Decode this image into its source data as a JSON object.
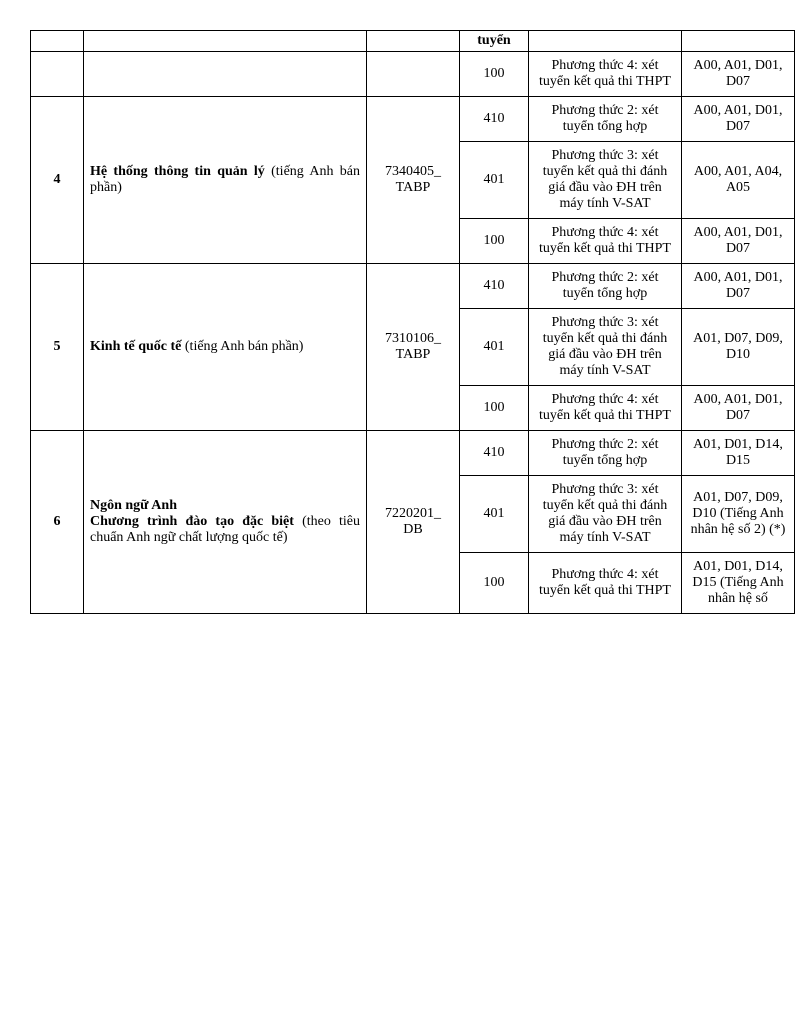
{
  "header_fragment": "tuyển",
  "rows": [
    {
      "stt": "",
      "name_html": "",
      "code": "",
      "sub": [
        {
          "quota": "100",
          "method": "Phương thức 4: xét tuyển kết quả thi THPT",
          "combo": "A00, A01, D01, D07"
        }
      ]
    },
    {
      "stt": "4",
      "name_bold": "Hệ thống thông tin quản lý",
      "name_rest": " (tiếng Anh bán phần)",
      "code": "7340405_TABP",
      "sub": [
        {
          "quota": "410",
          "method": "Phương thức 2: xét tuyển tổng hợp",
          "combo": "A00, A01, D01, D07"
        },
        {
          "quota": "401",
          "method": "Phương thức 3: xét tuyển kết quả thi đánh giá đầu vào ĐH trên máy tính V-SAT",
          "combo": "A00, A01, A04, A05"
        },
        {
          "quota": "100",
          "method": "Phương thức 4: xét tuyển kết quả thi THPT",
          "combo": "A00, A01, D01, D07"
        }
      ]
    },
    {
      "stt": "5",
      "name_bold": "Kinh tế quốc tế",
      "name_rest": " (tiếng Anh bán phần)",
      "code": "7310106_TABP",
      "sub": [
        {
          "quota": "410",
          "method": "Phương thức 2: xét tuyển tổng hợp",
          "combo": "A00, A01, D01, D07"
        },
        {
          "quota": "401",
          "method": "Phương thức 3: xét tuyển kết quả thi đánh giá đầu vào ĐH trên máy tính V-SAT",
          "combo": "A01, D07, D09, D10"
        },
        {
          "quota": "100",
          "method": "Phương thức 4: xét tuyển kết quả thi THPT",
          "combo": "A00, A01, D01, D07"
        }
      ]
    },
    {
      "stt": "6",
      "name_bold_lines": [
        "Ngôn ngữ Anh",
        "Chương trình đào tạo đặc biệt"
      ],
      "name_rest": " (theo tiêu chuẩn Anh ngữ chất lượng quốc tế)",
      "code": "7220201_DB",
      "sub": [
        {
          "quota": "410",
          "method": "Phương thức 2: xét tuyển tổng hợp",
          "combo": "A01, D01, D14, D15"
        },
        {
          "quota": "401",
          "method": "Phương thức 3: xét tuyển kết quả thi đánh giá đầu vào ĐH trên máy tính V-SAT",
          "combo": "A01, D07, D09, D10 (Tiếng Anh nhân hệ số 2) (*)"
        },
        {
          "quota": "100",
          "method": "Phương thức 4: xét tuyển kết quả thi THPT",
          "combo": "A01, D01, D14, D15 (Tiếng Anh nhân hệ số"
        }
      ]
    }
  ]
}
